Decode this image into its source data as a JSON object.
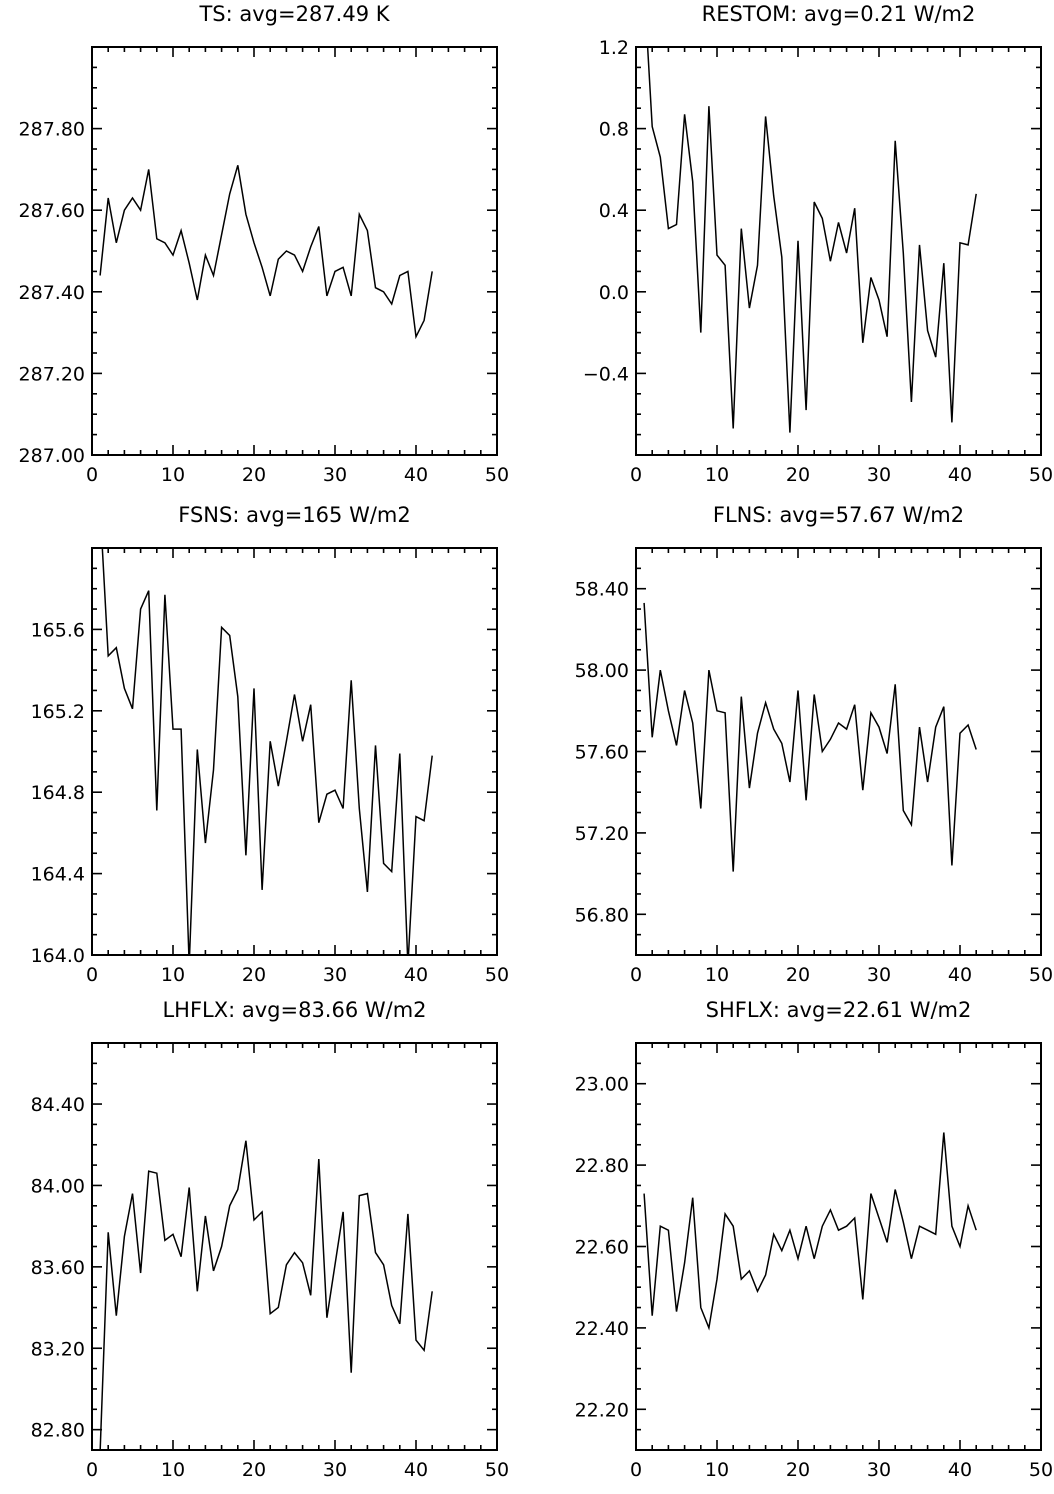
{
  "chart_data": [
    {
      "type": "line",
      "title": "TS: avg=287.49 K",
      "xlim": [
        0,
        50
      ],
      "xticks": [
        0,
        10,
        20,
        30,
        40,
        50
      ],
      "ylim": [
        287.0,
        288.0
      ],
      "yticks": [
        287.0,
        287.2,
        287.4,
        287.6,
        287.8
      ],
      "ytick_decimals": 2,
      "x": [
        1,
        2,
        3,
        4,
        5,
        6,
        7,
        8,
        9,
        10,
        11,
        12,
        13,
        14,
        15,
        16,
        17,
        18,
        19,
        20,
        21,
        22,
        23,
        24,
        25,
        26,
        27,
        28,
        29,
        30,
        31,
        32,
        33,
        34,
        35,
        36,
        37,
        38,
        39,
        40,
        41,
        42
      ],
      "values": [
        287.44,
        287.63,
        287.52,
        287.6,
        287.63,
        287.6,
        287.7,
        287.53,
        287.52,
        287.49,
        287.55,
        287.47,
        287.38,
        287.49,
        287.44,
        287.54,
        287.64,
        287.71,
        287.59,
        287.52,
        287.46,
        287.39,
        287.48,
        287.5,
        287.49,
        287.45,
        287.51,
        287.56,
        287.39,
        287.45,
        287.46,
        287.39,
        287.59,
        287.55,
        287.41,
        287.4,
        287.37,
        287.44,
        287.45,
        287.29,
        287.33,
        287.45
      ]
    },
    {
      "type": "line",
      "title": "RESTOM: avg=0.21 W/m2",
      "xlim": [
        0,
        50
      ],
      "xticks": [
        0,
        10,
        20,
        30,
        40,
        50
      ],
      "ylim": [
        -0.8,
        1.2
      ],
      "yticks": [
        -0.4,
        0.0,
        0.4,
        0.8,
        1.2
      ],
      "ytick_decimals": 1,
      "x": [
        1,
        2,
        3,
        4,
        5,
        6,
        7,
        8,
        9,
        10,
        11,
        12,
        13,
        14,
        15,
        16,
        17,
        18,
        19,
        20,
        21,
        22,
        23,
        24,
        25,
        26,
        27,
        28,
        29,
        30,
        31,
        32,
        33,
        34,
        35,
        36,
        37,
        38,
        39,
        40,
        41,
        42
      ],
      "values": [
        1.5,
        0.81,
        0.66,
        0.31,
        0.33,
        0.87,
        0.54,
        -0.2,
        0.91,
        0.18,
        0.13,
        -0.67,
        0.31,
        -0.08,
        0.13,
        0.86,
        0.47,
        0.17,
        -0.69,
        0.25,
        -0.58,
        0.44,
        0.36,
        0.15,
        0.34,
        0.19,
        0.41,
        -0.25,
        0.07,
        -0.04,
        -0.22,
        0.74,
        0.19,
        -0.54,
        0.23,
        -0.19,
        -0.32,
        0.14,
        -0.64,
        0.24,
        0.23,
        0.48
      ]
    },
    {
      "type": "line",
      "title": "FSNS: avg=165 W/m2",
      "xlim": [
        0,
        50
      ],
      "xticks": [
        0,
        10,
        20,
        30,
        40,
        50
      ],
      "ylim": [
        164.0,
        166.0
      ],
      "yticks": [
        164.0,
        164.4,
        164.8,
        165.2,
        165.6
      ],
      "ytick_decimals": 1,
      "x": [
        1,
        2,
        3,
        4,
        5,
        6,
        7,
        8,
        9,
        10,
        11,
        12,
        13,
        14,
        15,
        16,
        17,
        18,
        19,
        20,
        21,
        22,
        23,
        24,
        25,
        26,
        27,
        28,
        29,
        30,
        31,
        32,
        33,
        34,
        35,
        36,
        37,
        38,
        39,
        40,
        41,
        42
      ],
      "values": [
        166.2,
        165.47,
        165.51,
        165.31,
        165.21,
        165.7,
        165.79,
        164.71,
        165.77,
        165.11,
        165.11,
        163.95,
        165.01,
        164.55,
        164.91,
        165.61,
        165.57,
        165.27,
        164.49,
        165.31,
        164.32,
        165.05,
        164.83,
        165.05,
        165.28,
        165.05,
        165.23,
        164.65,
        164.79,
        164.81,
        164.72,
        165.35,
        164.72,
        164.31,
        165.03,
        164.45,
        164.41,
        164.99,
        163.95,
        164.68,
        164.66,
        164.98
      ]
    },
    {
      "type": "line",
      "title": "FLNS: avg=57.67 W/m2",
      "xlim": [
        0,
        50
      ],
      "xticks": [
        0,
        10,
        20,
        30,
        40,
        50
      ],
      "ylim": [
        56.6,
        58.6
      ],
      "yticks": [
        56.8,
        57.2,
        57.6,
        58.0,
        58.4
      ],
      "ytick_decimals": 2,
      "x": [
        1,
        2,
        3,
        4,
        5,
        6,
        7,
        8,
        9,
        10,
        11,
        12,
        13,
        14,
        15,
        16,
        17,
        18,
        19,
        20,
        21,
        22,
        23,
        24,
        25,
        26,
        27,
        28,
        29,
        30,
        31,
        32,
        33,
        34,
        35,
        36,
        37,
        38,
        39,
        40,
        41,
        42
      ],
      "values": [
        58.33,
        57.67,
        58.0,
        57.8,
        57.63,
        57.9,
        57.74,
        57.32,
        58.0,
        57.8,
        57.79,
        57.01,
        57.87,
        57.42,
        57.69,
        57.84,
        57.71,
        57.64,
        57.45,
        57.9,
        57.36,
        57.88,
        57.6,
        57.66,
        57.74,
        57.71,
        57.83,
        57.41,
        57.79,
        57.72,
        57.59,
        57.93,
        57.31,
        57.24,
        57.72,
        57.45,
        57.72,
        57.82,
        57.04,
        57.69,
        57.73,
        57.61
      ]
    },
    {
      "type": "line",
      "title": "LHFLX: avg=83.66 W/m2",
      "xlim": [
        0,
        50
      ],
      "xticks": [
        0,
        10,
        20,
        30,
        40,
        50
      ],
      "ylim": [
        82.7,
        84.7
      ],
      "yticks": [
        82.8,
        83.2,
        83.6,
        84.0,
        84.4
      ],
      "ytick_decimals": 2,
      "x": [
        1,
        2,
        3,
        4,
        5,
        6,
        7,
        8,
        9,
        10,
        11,
        12,
        13,
        14,
        15,
        16,
        17,
        18,
        19,
        20,
        21,
        22,
        23,
        24,
        25,
        26,
        27,
        28,
        29,
        30,
        31,
        32,
        33,
        34,
        35,
        36,
        37,
        38,
        39,
        40,
        41,
        42
      ],
      "values": [
        82.69,
        83.77,
        83.36,
        83.75,
        83.96,
        83.57,
        84.07,
        84.06,
        83.73,
        83.76,
        83.65,
        83.99,
        83.48,
        83.85,
        83.58,
        83.7,
        83.9,
        83.98,
        84.22,
        83.83,
        83.87,
        83.37,
        83.4,
        83.61,
        83.67,
        83.62,
        83.46,
        84.13,
        83.35,
        83.61,
        83.87,
        83.08,
        83.95,
        83.96,
        83.67,
        83.61,
        83.41,
        83.32,
        83.86,
        83.24,
        83.19,
        83.48
      ]
    },
    {
      "type": "line",
      "title": "SHFLX: avg=22.61 W/m2",
      "xlim": [
        0,
        50
      ],
      "xticks": [
        0,
        10,
        20,
        30,
        40,
        50
      ],
      "ylim": [
        22.1,
        23.1
      ],
      "yticks": [
        22.2,
        22.4,
        22.6,
        22.8,
        23.0
      ],
      "ytick_decimals": 2,
      "x": [
        1,
        2,
        3,
        4,
        5,
        6,
        7,
        8,
        9,
        10,
        11,
        12,
        13,
        14,
        15,
        16,
        17,
        18,
        19,
        20,
        21,
        22,
        23,
        24,
        25,
        26,
        27,
        28,
        29,
        30,
        31,
        32,
        33,
        34,
        35,
        36,
        37,
        38,
        39,
        40,
        41,
        42
      ],
      "values": [
        22.73,
        22.43,
        22.65,
        22.64,
        22.44,
        22.56,
        22.72,
        22.45,
        22.4,
        22.52,
        22.68,
        22.65,
        22.52,
        22.54,
        22.49,
        22.53,
        22.63,
        22.59,
        22.64,
        22.57,
        22.65,
        22.57,
        22.65,
        22.69,
        22.64,
        22.65,
        22.67,
        22.47,
        22.73,
        22.67,
        22.61,
        22.74,
        22.66,
        22.57,
        22.65,
        22.64,
        22.63,
        22.88,
        22.65,
        22.6,
        22.7,
        22.64
      ]
    }
  ]
}
